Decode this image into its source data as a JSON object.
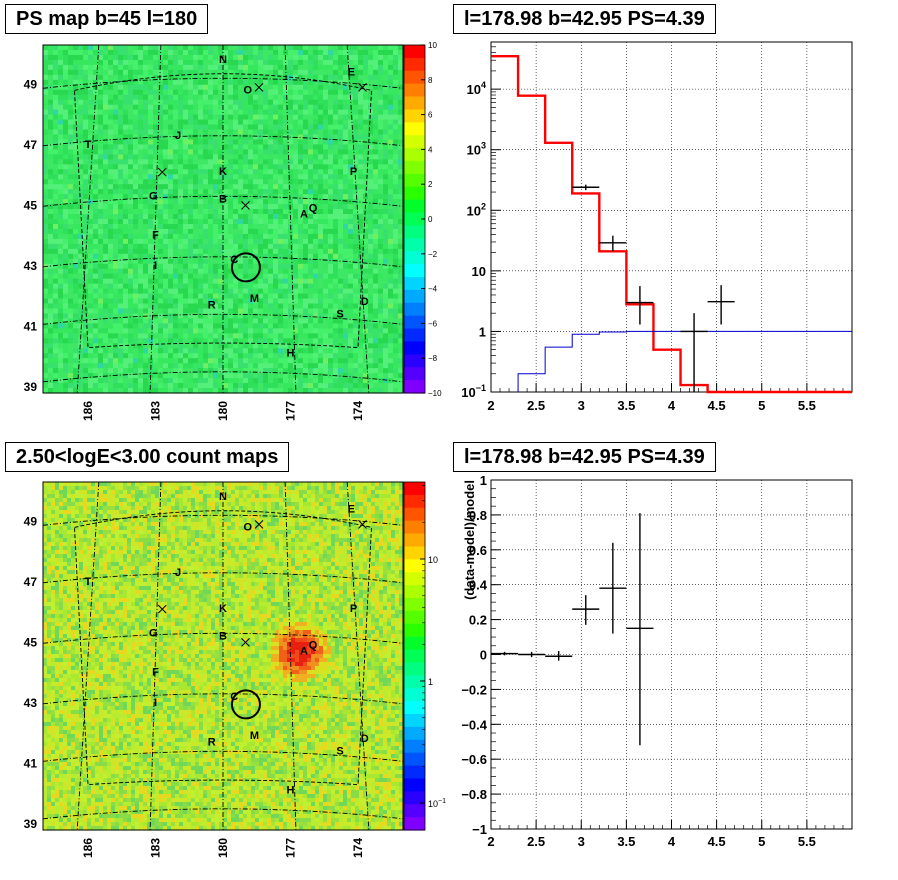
{
  "panels": {
    "ps_map": {
      "title": "PS map b=45 l=180"
    },
    "spectrum": {
      "title": "l=178.98 b=42.95 PS=4.39"
    },
    "count_map": {
      "title": "2.50<logE<3.00 count maps"
    },
    "residual": {
      "title": "l=178.98 b=42.95 PS=4.39"
    }
  },
  "chart_data": [
    {
      "id": "ps_map",
      "type": "heatmap",
      "title": "PS map b=45 l=180",
      "x_ticks": [
        "186",
        "183",
        "180",
        "177",
        "174"
      ],
      "x_tick_values": [
        186,
        183,
        180,
        177,
        174
      ],
      "y_ticks": [
        "39",
        "41",
        "43",
        "45",
        "47",
        "49"
      ],
      "y_tick_values": [
        39,
        41,
        43,
        45,
        47,
        49
      ],
      "xlim": [
        188,
        172
      ],
      "ylim": [
        38.8,
        50.3
      ],
      "colorbar": {
        "scale": "linear",
        "range": [
          -10,
          10
        ],
        "tick_labels": [
          "10",
          "8",
          "6",
          "4",
          "2",
          "0",
          "−2",
          "−4",
          "−6",
          "−8",
          "−10"
        ],
        "tick_values": [
          10,
          8,
          6,
          4,
          2,
          0,
          -2,
          -4,
          -6,
          -8,
          -10
        ]
      },
      "labels": [
        {
          "text": "N",
          "l": 180.0,
          "b": 49.7
        },
        {
          "text": "E",
          "l": 174.3,
          "b": 49.3
        },
        {
          "text": "O",
          "l": 178.9,
          "b": 48.7
        },
        {
          "text": "T",
          "l": 186.0,
          "b": 46.9
        },
        {
          "text": "J",
          "l": 182.0,
          "b": 47.2
        },
        {
          "text": "K",
          "l": 180.0,
          "b": 46.0
        },
        {
          "text": "P",
          "l": 174.2,
          "b": 46.0
        },
        {
          "text": "G",
          "l": 183.1,
          "b": 45.2
        },
        {
          "text": "B",
          "l": 180.0,
          "b": 45.1
        },
        {
          "text": "Q",
          "l": 176.0,
          "b": 44.8
        },
        {
          "text": "A",
          "l": 176.4,
          "b": 44.6
        },
        {
          "text": "F",
          "l": 183.0,
          "b": 43.9
        },
        {
          "text": "I",
          "l": 183.0,
          "b": 42.9
        },
        {
          "text": "C",
          "l": 179.5,
          "b": 43.1
        },
        {
          "text": "R",
          "l": 180.5,
          "b": 41.6
        },
        {
          "text": "M",
          "l": 178.6,
          "b": 41.8
        },
        {
          "text": "S",
          "l": 174.8,
          "b": 41.3
        },
        {
          "text": "D",
          "l": 173.7,
          "b": 41.7
        },
        {
          "text": "H",
          "l": 177.0,
          "b": 40.0
        }
      ],
      "crosses": [
        {
          "l": 178.4,
          "b": 48.9
        },
        {
          "l": 173.8,
          "b": 48.9
        },
        {
          "l": 182.7,
          "b": 46.1
        },
        {
          "l": 179.0,
          "b": 45.0
        }
      ],
      "circle": {
        "l": 178.98,
        "b": 42.95
      }
    },
    {
      "id": "spectrum",
      "type": "line",
      "title": "l=178.98 b=42.95 PS=4.39",
      "yscale": "log",
      "xlim": [
        2,
        6
      ],
      "ylim": [
        0.1,
        60000
      ],
      "x_ticks": [
        "2",
        "2.5",
        "3",
        "3.5",
        "4",
        "4.5",
        "5",
        "5.5"
      ],
      "x_tick_values": [
        2,
        2.5,
        3,
        3.5,
        4,
        4.5,
        5,
        5.5
      ],
      "y_ticks": [
        "10^-1",
        "1",
        "10",
        "10^2",
        "10^3",
        "10^4"
      ],
      "y_tick_values": [
        0.1,
        1,
        10,
        100,
        1000,
        10000
      ],
      "series": [
        {
          "kind": "step",
          "color": "#ff0000",
          "edges": [
            2,
            2.3,
            2.6,
            2.9,
            3.2,
            3.5,
            3.8,
            4.1,
            4.4,
            6
          ],
          "values": [
            35000,
            7800,
            1300,
            190,
            21,
            2.8,
            0.5,
            0.13,
            0.1
          ]
        },
        {
          "kind": "step",
          "color": "#0000cc",
          "edges": [
            2.3,
            2.6,
            2.9,
            3.2,
            3.5,
            6
          ],
          "values": [
            0.2,
            0.55,
            0.9,
            0.98,
            1.0
          ]
        },
        {
          "kind": "points",
          "color": "#000000",
          "points": [
            {
              "x": 3.05,
              "y": 240,
              "xerr": 0.15,
              "ylo": 215,
              "yhi": 265
            },
            {
              "x": 3.35,
              "y": 29,
              "xerr": 0.15,
              "ylo": 21,
              "yhi": 38
            },
            {
              "x": 3.65,
              "y": 3.0,
              "xerr": 0.15,
              "ylo": 1.3,
              "yhi": 5.6
            },
            {
              "x": 4.25,
              "y": 1.0,
              "xerr": 0.15,
              "ylo": 0.1,
              "yhi": 2.0
            },
            {
              "x": 4.55,
              "y": 3.1,
              "xerr": 0.15,
              "ylo": 1.3,
              "yhi": 5.8
            }
          ]
        }
      ]
    },
    {
      "id": "count_map",
      "type": "heatmap",
      "title": "2.50<logE<3.00 count maps",
      "x_ticks": [
        "186",
        "183",
        "180",
        "177",
        "174"
      ],
      "x_tick_values": [
        186,
        183,
        180,
        177,
        174
      ],
      "y_ticks": [
        "39",
        "41",
        "43",
        "45",
        "47",
        "49"
      ],
      "y_tick_values": [
        39,
        41,
        43,
        45,
        47,
        49
      ],
      "xlim": [
        188,
        172
      ],
      "ylim": [
        38.8,
        50.3
      ],
      "colorbar": {
        "scale": "log",
        "tick_labels": [
          "10",
          "1",
          "10^-1"
        ],
        "tick_values": [
          10,
          1,
          0.1
        ]
      },
      "source_blob": {
        "l": 176.6,
        "b": 44.7
      }
    },
    {
      "id": "residual",
      "type": "scatter",
      "title": "l=178.98 b=42.95 PS=4.39",
      "ylabel": "(data-model)/model",
      "xlim": [
        2,
        6
      ],
      "ylim": [
        -1,
        1
      ],
      "x_ticks": [
        "2",
        "2.5",
        "3",
        "3.5",
        "4",
        "4.5",
        "5",
        "5.5"
      ],
      "x_tick_values": [
        2,
        2.5,
        3,
        3.5,
        4,
        4.5,
        5,
        5.5
      ],
      "y_ticks": [
        "1",
        "0.8",
        "0.6",
        "0.4",
        "0.2",
        "0",
        "−0.2",
        "−0.4",
        "−0.6",
        "−0.8",
        "−1"
      ],
      "y_tick_values": [
        1,
        0.8,
        0.6,
        0.4,
        0.2,
        0,
        -0.2,
        -0.4,
        -0.6,
        -0.8,
        -1
      ],
      "points": [
        {
          "x": 2.15,
          "y": 0.005,
          "xerr": 0.15,
          "ylo": -0.005,
          "yhi": 0.015
        },
        {
          "x": 2.45,
          "y": 0.0,
          "xerr": 0.15,
          "ylo": -0.015,
          "yhi": 0.015
        },
        {
          "x": 2.75,
          "y": -0.01,
          "xerr": 0.15,
          "ylo": -0.035,
          "yhi": 0.02
        },
        {
          "x": 3.05,
          "y": 0.26,
          "xerr": 0.15,
          "ylo": 0.17,
          "yhi": 0.34
        },
        {
          "x": 3.35,
          "y": 0.38,
          "xerr": 0.15,
          "ylo": 0.12,
          "yhi": 0.64
        },
        {
          "x": 3.65,
          "y": 0.15,
          "xerr": 0.15,
          "ylo": -0.52,
          "yhi": 0.81
        }
      ]
    }
  ]
}
